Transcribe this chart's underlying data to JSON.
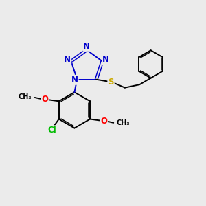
{
  "background_color": "#ebebeb",
  "bond_color": "#000000",
  "tetrazole_color": "#0000cc",
  "sulfur_color": "#ccaa00",
  "oxygen_color": "#ff0000",
  "chlorine_color": "#00bb00",
  "figsize": [
    3.0,
    3.0
  ],
  "dpi": 100,
  "xlim": [
    0,
    10
  ],
  "ylim": [
    0,
    10
  ]
}
